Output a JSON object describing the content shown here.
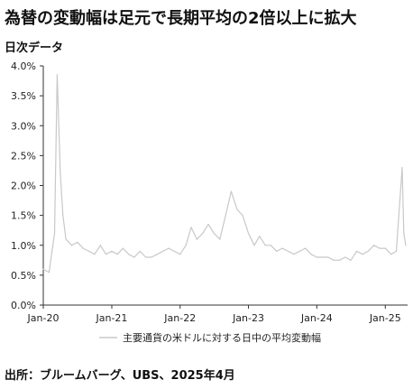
{
  "title": "為替の変動幅は足元で長期平均の2倍以上に拡大",
  "subtitle": "日次データ",
  "source": "出所：ブルームバーグ、UBS、2025年4月",
  "colors": {
    "series": "#c8c8c8",
    "axis": "#333333",
    "background": "#ffffff"
  },
  "chart_data": {
    "type": "line",
    "title": "為替の変動幅は足元で長期平均の2倍以上に拡大",
    "subtitle": "日次データ",
    "xlabel": "",
    "ylabel": "",
    "x_tick_labels": [
      "Jan-20",
      "Jan-21",
      "Jan-22",
      "Jan-23",
      "Jan-24",
      "Jan-25"
    ],
    "y_tick_labels": [
      "0.0%",
      "0.5%",
      "1.0%",
      "1.5%",
      "2.0%",
      "2.5%",
      "3.0%",
      "3.5%",
      "4.0%"
    ],
    "ylim": [
      0,
      4.0
    ],
    "xlim": [
      "2020-01-01",
      "2025-04-30"
    ],
    "grid": false,
    "legend_position": "bottom",
    "series": [
      {
        "name": "主要通貨の米ドルに対する日中の平均変動幅",
        "color": "#c8c8c8",
        "x": [
          "2020-01-01",
          "2020-02-01",
          "2020-03-01",
          "2020-03-15",
          "2020-04-01",
          "2020-04-15",
          "2020-05-01",
          "2020-06-01",
          "2020-07-01",
          "2020-08-01",
          "2020-09-01",
          "2020-10-01",
          "2020-11-01",
          "2020-12-01",
          "2021-01-01",
          "2021-02-01",
          "2021-03-01",
          "2021-04-01",
          "2021-05-01",
          "2021-06-01",
          "2021-07-01",
          "2021-08-01",
          "2021-09-01",
          "2021-10-01",
          "2021-11-01",
          "2021-12-01",
          "2022-01-01",
          "2022-02-01",
          "2022-03-01",
          "2022-04-01",
          "2022-05-01",
          "2022-06-01",
          "2022-07-01",
          "2022-08-01",
          "2022-09-01",
          "2022-10-01",
          "2022-11-01",
          "2022-12-01",
          "2023-01-01",
          "2023-02-01",
          "2023-03-01",
          "2023-04-01",
          "2023-05-01",
          "2023-06-01",
          "2023-07-01",
          "2023-08-01",
          "2023-09-01",
          "2023-10-01",
          "2023-11-01",
          "2023-12-01",
          "2024-01-01",
          "2024-02-01",
          "2024-03-01",
          "2024-04-01",
          "2024-05-01",
          "2024-06-01",
          "2024-07-01",
          "2024-08-01",
          "2024-09-01",
          "2024-10-01",
          "2024-11-01",
          "2024-12-01",
          "2025-01-01",
          "2025-02-01",
          "2025-03-01",
          "2025-04-01",
          "2025-04-10",
          "2025-04-20"
        ],
        "values": [
          0.6,
          0.55,
          1.2,
          3.85,
          2.2,
          1.5,
          1.1,
          1.0,
          1.05,
          0.95,
          0.9,
          0.85,
          1.0,
          0.85,
          0.9,
          0.85,
          0.95,
          0.85,
          0.8,
          0.9,
          0.8,
          0.8,
          0.85,
          0.9,
          0.95,
          0.9,
          0.85,
          1.0,
          1.3,
          1.1,
          1.2,
          1.35,
          1.2,
          1.1,
          1.5,
          1.9,
          1.6,
          1.5,
          1.2,
          1.0,
          1.15,
          1.0,
          1.0,
          0.9,
          0.95,
          0.9,
          0.85,
          0.9,
          0.95,
          0.85,
          0.8,
          0.8,
          0.8,
          0.75,
          0.75,
          0.8,
          0.75,
          0.9,
          0.85,
          0.9,
          1.0,
          0.95,
          0.95,
          0.85,
          0.9,
          2.3,
          1.2,
          1.0
        ]
      }
    ]
  }
}
